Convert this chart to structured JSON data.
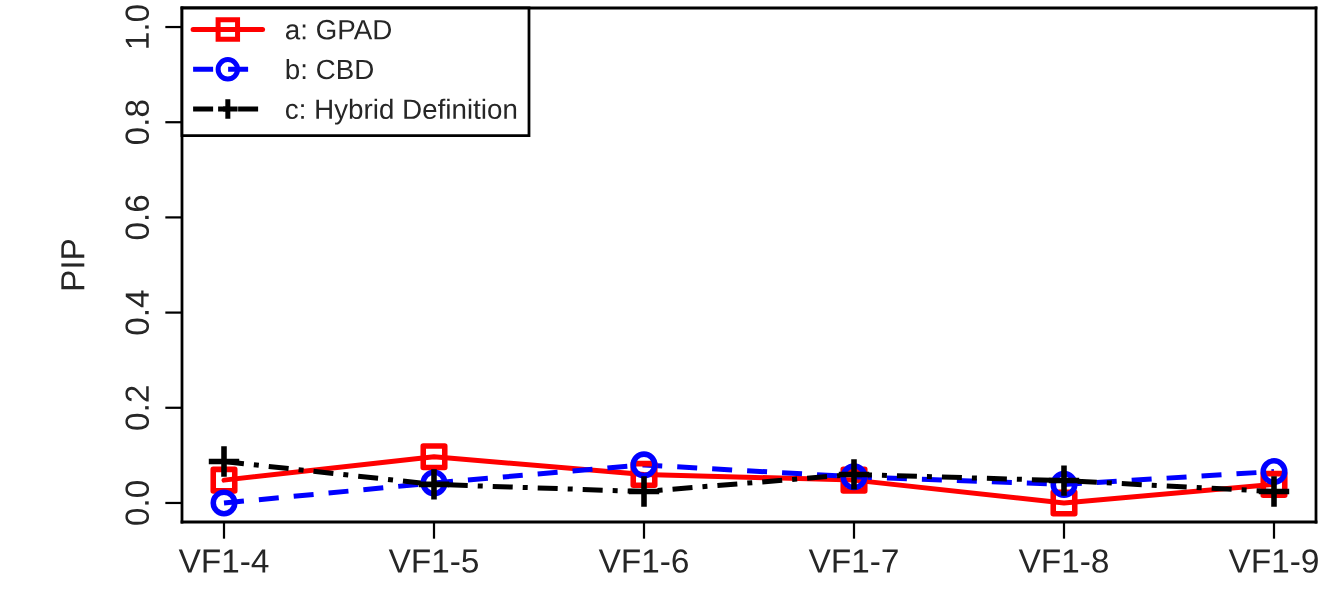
{
  "chart_data": {
    "type": "line",
    "ylabel": "PIP",
    "categories": [
      "VF1-4",
      "VF1-5",
      "VF1-6",
      "VF1-7",
      "VF1-8",
      "VF1-9"
    ],
    "series": [
      {
        "name": "a: GPAD",
        "color": "#ff0000",
        "marker": "square",
        "line_style": "solid",
        "values": [
          0.048,
          0.097,
          0.06,
          0.048,
          0.0,
          0.039
        ]
      },
      {
        "name": "b: CBD",
        "color": "#0000ff",
        "marker": "circle",
        "line_style": "dashed",
        "values": [
          0.0,
          0.042,
          0.08,
          0.055,
          0.039,
          0.066
        ]
      },
      {
        "name": "c: Hybrid Definition",
        "color": "#000000",
        "marker": "cross",
        "line_style": "dashdot",
        "values": [
          0.087,
          0.039,
          0.024,
          0.06,
          0.047,
          0.024
        ]
      }
    ],
    "ylim": [
      -0.04,
      1.04
    ],
    "yticks": [
      {
        "value": 0,
        "label": "0.0"
      },
      0.2,
      0.4,
      0.6,
      0.8,
      {
        "value": 1,
        "label": "1.0"
      }
    ],
    "grid": false,
    "legend": "top left"
  }
}
